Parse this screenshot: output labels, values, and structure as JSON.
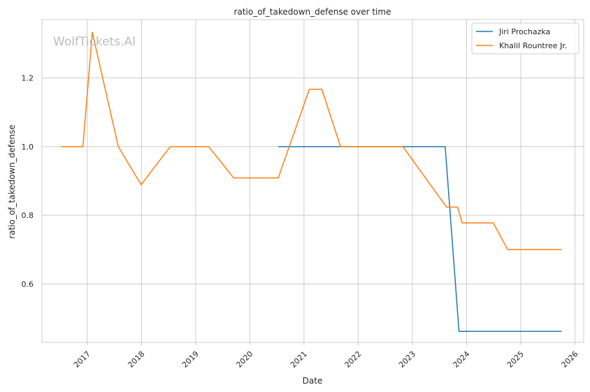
{
  "watermark": "WolfTickets.AI",
  "chart_data": {
    "type": "line",
    "title": "ratio_of_takedown_defense over time",
    "xlabel": "Date",
    "ylabel": "ratio_of_takedown_defense",
    "xlim": [
      "2016-03-01",
      "2026-03-01"
    ],
    "ylim": [
      0.43,
      1.37
    ],
    "x_ticks": [
      "2017",
      "2018",
      "2019",
      "2020",
      "2021",
      "2022",
      "2023",
      "2024",
      "2025",
      "2026"
    ],
    "y_ticks": [
      0.6,
      0.8,
      1.0,
      1.2
    ],
    "grid": true,
    "legend_position": "top-right",
    "series": [
      {
        "name": "Jiri Prochazka",
        "color": "#1f77b4",
        "points": [
          [
            "2020-07-11",
            1.0
          ],
          [
            "2021-05-01",
            1.0
          ],
          [
            "2023-08-10",
            1.0
          ],
          [
            "2023-11-11",
            0.462
          ],
          [
            "2025-10-04",
            0.462
          ]
        ]
      },
      {
        "name": "Khalil Rountree Jr.",
        "color": "#ff7f0e",
        "points": [
          [
            "2016-07-08",
            1.0
          ],
          [
            "2016-12-03",
            1.0
          ],
          [
            "2017-02-04",
            1.333
          ],
          [
            "2017-07-29",
            1.0
          ],
          [
            "2017-12-30",
            0.889
          ],
          [
            "2018-07-14",
            1.0
          ],
          [
            "2019-03-30",
            1.0
          ],
          [
            "2019-09-14",
            0.909
          ],
          [
            "2020-07-11",
            0.909
          ],
          [
            "2021-02-06",
            1.167
          ],
          [
            "2021-05-01",
            1.167
          ],
          [
            "2021-09-04",
            1.0
          ],
          [
            "2022-10-29",
            1.0
          ],
          [
            "2023-08-19",
            0.824
          ],
          [
            "2023-11-01",
            0.824
          ],
          [
            "2023-12-02",
            0.778
          ],
          [
            "2024-06-29",
            0.778
          ],
          [
            "2024-10-05",
            0.7
          ],
          [
            "2025-10-04",
            0.7
          ]
        ]
      }
    ]
  }
}
